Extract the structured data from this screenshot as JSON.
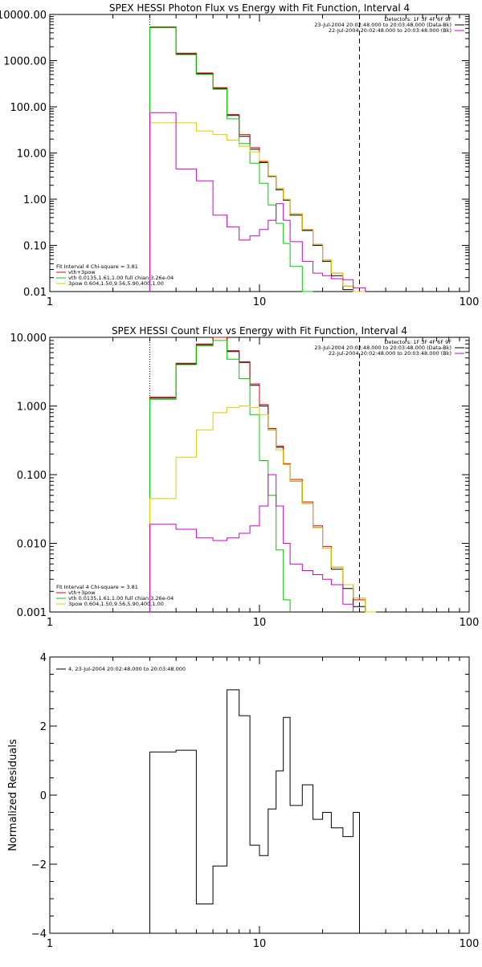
{
  "chart_data": [
    {
      "type": "line",
      "title": "SPEX HESSI Photon Flux vs Energy with Fit Function, Interval 4",
      "xscale": "log",
      "yscale": "log",
      "xlim": [
        1,
        100
      ],
      "ylim": [
        0.01,
        10000
      ],
      "xticks": [
        {
          "v": 1,
          "label": "1"
        },
        {
          "v": 10,
          "label": "10"
        },
        {
          "v": 100,
          "label": "100"
        }
      ],
      "yticks": [
        {
          "v": 0.01,
          "label": "0.01"
        },
        {
          "v": 0.1,
          "label": "0.10"
        },
        {
          "v": 1,
          "label": "1.00"
        },
        {
          "v": 10,
          "label": "10.00"
        },
        {
          "v": 100,
          "label": "100.00"
        },
        {
          "v": 1000,
          "label": "1000.00"
        },
        {
          "v": 10000,
          "label": "10000.00"
        }
      ],
      "vlines": [
        {
          "x": 3,
          "style": "dotted"
        },
        {
          "x": 30,
          "style": "dashed"
        }
      ],
      "legend_topright": [
        {
          "text": "Detectors: 1F 3F 4F 6F 9F",
          "color": ""
        },
        {
          "text": "23-Jul-2004 20:02:48.000 to 20:03:48.000 (Data-Bk)",
          "color": "#000000"
        },
        {
          "text": "22-Jul-2004 20:02:48.000 to 20:03:48.000 (Bk)",
          "color": "#cc00cc"
        }
      ],
      "legend_bottomleft": [
        {
          "text": "Fit Interval  4    Chi-square = 3.81",
          "color": ""
        },
        {
          "text": "vth+3pow",
          "color": "#dd0000"
        },
        {
          "text": "vth 0.0135,1.61,1.00  full chian 3.26e-04",
          "color": "#00cc00"
        },
        {
          "text": "3pow 0.604,1.50,9.56,5.90,400,1.00",
          "color": "#ddcc00"
        }
      ],
      "x_edges": [
        3,
        4,
        5,
        6,
        7,
        8,
        9,
        10,
        11,
        12,
        13,
        14,
        16,
        18,
        20,
        22,
        25,
        28,
        32,
        36,
        40
      ],
      "series": [
        {
          "name": "Data-Bk",
          "color": "#000000",
          "values": [
            5200,
            1400,
            520,
            250,
            65,
            23,
            12,
            6.2,
            3.1,
            1.6,
            0.95,
            0.45,
            0.21,
            0.1,
            0.045,
            0.022,
            0.011,
            null,
            null,
            null
          ]
        },
        {
          "name": "vth+3pow",
          "color": "#dd0000",
          "values": [
            5400,
            1450,
            540,
            260,
            68,
            25,
            13,
            6.5,
            3.2,
            1.7,
            1.0,
            0.48,
            0.22,
            0.105,
            0.048,
            0.025,
            0.013,
            0.008,
            null,
            null
          ]
        },
        {
          "name": "vth",
          "color": "#00cc00",
          "values": [
            5300,
            1350,
            500,
            240,
            55,
            16,
            6,
            2.2,
            0.75,
            0.3,
            0.11,
            0.035,
            0.01,
            null,
            null,
            null,
            null,
            null,
            null,
            null
          ]
        },
        {
          "name": "3pow",
          "color": "#ddcc00",
          "values": [
            45,
            45,
            30,
            25,
            19,
            14,
            10.5,
            6.8,
            3.2,
            1.7,
            1.0,
            0.48,
            0.22,
            0.105,
            0.048,
            0.025,
            0.013,
            0.008,
            null,
            null
          ]
        },
        {
          "name": "Bk",
          "color": "#cc00cc",
          "values": [
            75,
            4.5,
            2.5,
            0.45,
            0.25,
            0.13,
            0.16,
            0.22,
            0.35,
            0.8,
            0.35,
            0.12,
            0.045,
            0.025,
            0.022,
            0.019,
            0.018,
            0.012,
            null,
            null
          ]
        }
      ]
    },
    {
      "type": "line",
      "title": "SPEX HESSI Count Flux vs Energy with Fit Function, Interval 4",
      "xscale": "log",
      "yscale": "log",
      "xlim": [
        1,
        100
      ],
      "ylim": [
        0.001,
        10
      ],
      "xticks": [
        {
          "v": 1,
          "label": "1"
        },
        {
          "v": 10,
          "label": "10"
        },
        {
          "v": 100,
          "label": "100"
        }
      ],
      "yticks": [
        {
          "v": 0.001,
          "label": "0.001"
        },
        {
          "v": 0.01,
          "label": "0.010"
        },
        {
          "v": 0.1,
          "label": "0.100"
        },
        {
          "v": 1,
          "label": "1.000"
        },
        {
          "v": 10,
          "label": "10.000"
        }
      ],
      "vlines": [
        {
          "x": 3,
          "style": "dotted"
        },
        {
          "x": 30,
          "style": "dashed"
        }
      ],
      "legend_topright": [
        {
          "text": "Detectors: 1F 3F 4F 6F 9F",
          "color": ""
        },
        {
          "text": "23-Jul-2004 20:02:48.000 to 20:03:48.000 (Data-Bk)",
          "color": "#000000"
        },
        {
          "text": "22-Jul-2004 20:02:48.000 to 20:03:48.000 (Bk)",
          "color": "#cc00cc"
        }
      ],
      "legend_bottomleft": [
        {
          "text": "Fit Interval  4    Chi-square = 3.81",
          "color": ""
        },
        {
          "text": "vth+3pow",
          "color": "#dd0000"
        },
        {
          "text": "vth 0.0135,1.61,1.00  full chian 3.26e-04",
          "color": "#00cc00"
        },
        {
          "text": "3pow 0.604,1.50,9.56,5.90,400,1.00",
          "color": "#ddcc00"
        }
      ],
      "x_edges": [
        3,
        4,
        5,
        6,
        7,
        8,
        9,
        10,
        11,
        12,
        13,
        14,
        16,
        18,
        20,
        22,
        25,
        28,
        32,
        36,
        40
      ],
      "series": [
        {
          "name": "Data-Bk",
          "color": "#000000",
          "values": [
            1.3,
            4.1,
            7.8,
            10.2,
            6.2,
            4.3,
            2.0,
            1.0,
            0.45,
            0.25,
            0.14,
            0.08,
            0.038,
            0.017,
            0.0085,
            0.0042,
            0.0022,
            0.0012,
            null,
            null
          ]
        },
        {
          "name": "vth+3pow",
          "color": "#dd0000",
          "values": [
            1.35,
            4.2,
            8.0,
            10.5,
            6.4,
            4.4,
            2.1,
            1.05,
            0.47,
            0.26,
            0.145,
            0.085,
            0.04,
            0.018,
            0.009,
            0.0045,
            0.0025,
            0.0015,
            null,
            null
          ]
        },
        {
          "name": "vth",
          "color": "#00cc00",
          "values": [
            1.25,
            4.0,
            7.5,
            9.0,
            4.8,
            2.5,
            0.75,
            0.16,
            0.05,
            0.008,
            0.0015,
            null,
            null,
            null,
            null,
            null,
            null,
            null,
            null,
            null
          ]
        },
        {
          "name": "3pow",
          "color": "#ddcc00",
          "values": [
            0.045,
            0.18,
            0.45,
            0.8,
            0.95,
            1.0,
            0.95,
            0.75,
            0.45,
            0.23,
            0.14,
            0.08,
            0.038,
            0.017,
            0.0085,
            0.0045,
            0.0025,
            0.0016,
            0.001,
            null
          ]
        },
        {
          "name": "Bk",
          "color": "#cc00cc",
          "values": [
            0.019,
            0.016,
            0.012,
            0.011,
            0.012,
            0.014,
            0.018,
            0.035,
            0.1,
            0.035,
            0.01,
            0.005,
            0.004,
            0.0035,
            0.003,
            0.0025,
            0.0013,
            null,
            null,
            null
          ]
        }
      ]
    },
    {
      "type": "line",
      "title": "",
      "xscale": "log",
      "yscale": "linear",
      "xlim": [
        1,
        100
      ],
      "ylim": [
        -4,
        4
      ],
      "ylabel": "Normalized Residuals",
      "xticks": [
        {
          "v": 1,
          "label": "1"
        },
        {
          "v": 10,
          "label": "10"
        },
        {
          "v": 100,
          "label": "100"
        }
      ],
      "yticks": [
        {
          "v": -4,
          "label": "−4"
        },
        {
          "v": -2,
          "label": "−2"
        },
        {
          "v": 0,
          "label": "0"
        },
        {
          "v": 2,
          "label": "2"
        },
        {
          "v": 4,
          "label": "4"
        }
      ],
      "legend_topleft": [
        {
          "text": "4, 23-Jul-2004 20:02:48.000 to 20:03:48.000",
          "color": "#000000"
        }
      ],
      "x_edges": [
        3,
        4,
        5,
        6,
        7,
        8,
        9,
        10,
        11,
        12,
        13,
        14,
        16,
        18,
        20,
        22,
        25,
        28,
        30
      ],
      "series": [
        {
          "name": "residuals",
          "color": "#000000",
          "values": [
            1.25,
            1.3,
            -3.15,
            -2.05,
            3.05,
            2.3,
            -1.45,
            -1.75,
            -0.4,
            0.7,
            2.25,
            -0.3,
            0.3,
            -0.7,
            -0.5,
            -0.95,
            -1.2,
            -0.5
          ]
        }
      ]
    }
  ]
}
